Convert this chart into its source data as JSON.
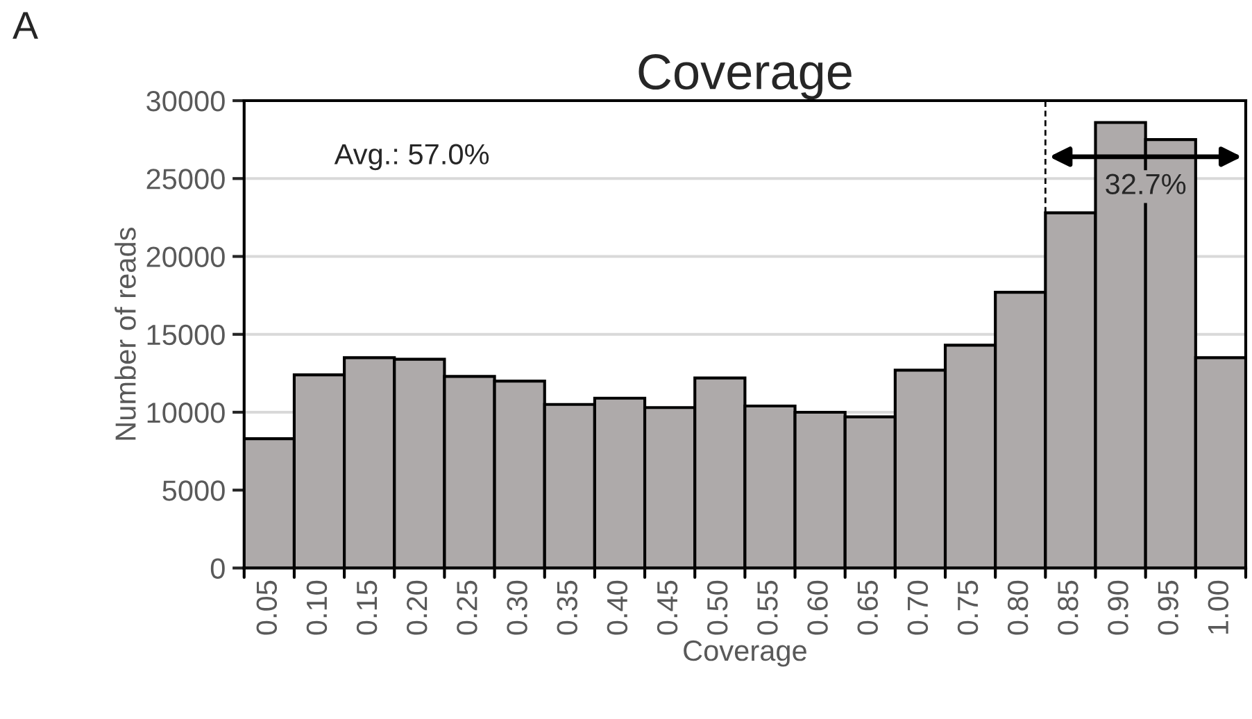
{
  "chart_data": {
    "type": "bar",
    "title": "Coverage",
    "xlabel": "Coverage",
    "ylabel": "Number of reads",
    "categories": [
      "0.05",
      "0.10",
      "0.15",
      "0.20",
      "0.25",
      "0.30",
      "0.35",
      "0.40",
      "0.45",
      "0.50",
      "0.55",
      "0.60",
      "0.65",
      "0.70",
      "0.75",
      "0.80",
      "0.85",
      "0.90",
      "0.95",
      "1.00"
    ],
    "values": [
      8300,
      12400,
      13500,
      13400,
      12300,
      12000,
      10500,
      10900,
      10300,
      12200,
      10400,
      10000,
      9700,
      12700,
      14300,
      17700,
      22800,
      28600,
      27500,
      13500
    ],
    "color": "#aeaaaa",
    "ylim": [
      0,
      30000
    ],
    "yticks": [
      0,
      5000,
      10000,
      15000,
      20000,
      25000,
      30000
    ],
    "grid": "y",
    "annotations": [
      "A",
      "Avg.: 57.0%",
      "32.7%"
    ]
  }
}
